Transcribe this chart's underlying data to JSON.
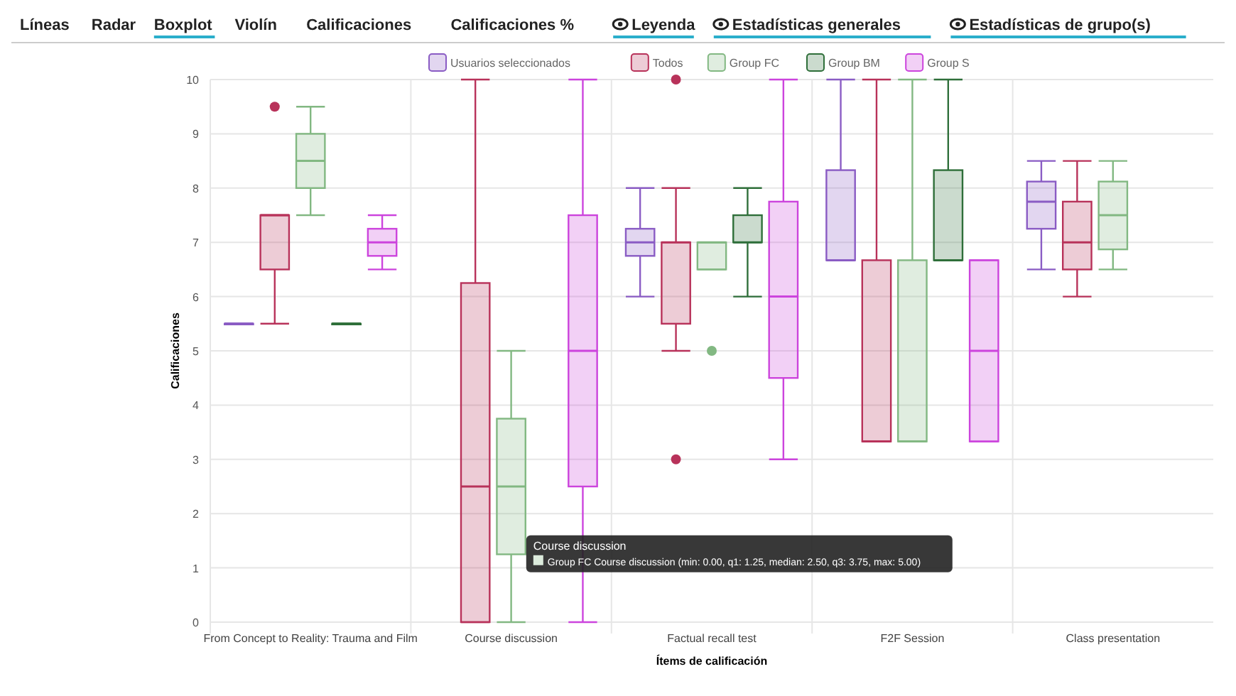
{
  "chart_data": {
    "type": "box",
    "ylabel": "Calificaciones",
    "xlabel": "Ítems de calificación",
    "categories": [
      "From Concept to Reality: Trauma and Film",
      "Course discussion",
      "Factual recall test",
      "F2F Session",
      "Class presentation"
    ],
    "ylim": [
      0,
      10
    ],
    "yticks": [
      0,
      1,
      2,
      3,
      4,
      5,
      6,
      7,
      8,
      9,
      10
    ],
    "grid": true,
    "legend": "top",
    "series": [
      {
        "name": "Usuarios seleccionados",
        "color": "#8a5cc4",
        "boxes": [
          {
            "low": 5.5,
            "q1": 5.5,
            "median": 5.5,
            "q3": 5.5,
            "high": 5.5
          },
          null,
          {
            "low": 6,
            "q1": 6.75,
            "median": 7,
            "q3": 7.25,
            "high": 8
          },
          {
            "low": 6.67,
            "q1": 6.67,
            "median": 6.67,
            "q3": 8.33,
            "high": 10
          },
          {
            "low": 6.5,
            "q1": 7.25,
            "median": 7.75,
            "q3": 8.12,
            "high": 8.5
          }
        ]
      },
      {
        "name": "Todos",
        "color": "#b8325a",
        "boxes": [
          {
            "low": 5.5,
            "q1": 6.5,
            "median": 7.5,
            "q3": 7.5,
            "high": 7.5,
            "outliers": [
              9.5
            ]
          },
          {
            "low": 0,
            "q1": 0,
            "median": 2.5,
            "q3": 6.25,
            "high": 10
          },
          {
            "low": 5,
            "q1": 5.5,
            "median": 7,
            "q3": 7,
            "high": 8,
            "outliers": [
              10,
              3
            ]
          },
          {
            "low": 3.33,
            "q1": 3.33,
            "median": 3.33,
            "q3": 6.67,
            "high": 10
          },
          {
            "low": 6,
            "q1": 6.5,
            "median": 7,
            "q3": 7.75,
            "high": 8.5
          }
        ]
      },
      {
        "name": "Group FC",
        "color": "#82b882",
        "boxes": [
          {
            "low": 7.5,
            "q1": 8,
            "median": 8.5,
            "q3": 9,
            "high": 9.5
          },
          {
            "low": 0,
            "q1": 1.25,
            "median": 2.5,
            "q3": 3.75,
            "high": 5
          },
          {
            "low": 6.5,
            "q1": 6.5,
            "median": 7,
            "q3": 7,
            "high": 7,
            "outliers": [
              5
            ]
          },
          {
            "low": 3.33,
            "q1": 3.33,
            "median": 3.33,
            "q3": 6.67,
            "high": 10
          },
          {
            "low": 6.5,
            "q1": 6.87,
            "median": 7.5,
            "q3": 8.12,
            "high": 8.5
          }
        ]
      },
      {
        "name": "Group BM",
        "color": "#2f6f3a",
        "boxes": [
          {
            "low": 5.5,
            "q1": 5.5,
            "median": 5.5,
            "q3": 5.5,
            "high": 5.5
          },
          null,
          {
            "low": 6,
            "q1": 7,
            "median": 7,
            "q3": 7.5,
            "high": 8
          },
          {
            "low": 6.67,
            "q1": 6.67,
            "median": 6.67,
            "q3": 8.33,
            "high": 10
          },
          null
        ]
      },
      {
        "name": "Group S",
        "color": "#cc44dd",
        "boxes": [
          {
            "low": 6.5,
            "q1": 6.75,
            "median": 7,
            "q3": 7.25,
            "high": 7.5
          },
          {
            "low": 0,
            "q1": 2.5,
            "median": 5,
            "q3": 7.5,
            "high": 10
          },
          {
            "low": 3,
            "q1": 4.5,
            "median": 6,
            "q3": 7.75,
            "high": 10
          },
          {
            "low": 3.33,
            "q1": 3.33,
            "median": 5,
            "q3": 6.67,
            "high": 6.67
          },
          null
        ]
      }
    ],
    "annotations": [
      "Líneas",
      "Radar",
      "Boxplot",
      "Violín",
      "Calificaciones",
      "Calificaciones %",
      "Leyenda",
      "Estadísticas generales",
      "Estadísticas de grupo(s)",
      "Course discussion",
      "Group FC Course discussion (min: 0.00, q1: 1.25, median: 2.50, q3: 3.75, max: 5.00)"
    ]
  }
}
